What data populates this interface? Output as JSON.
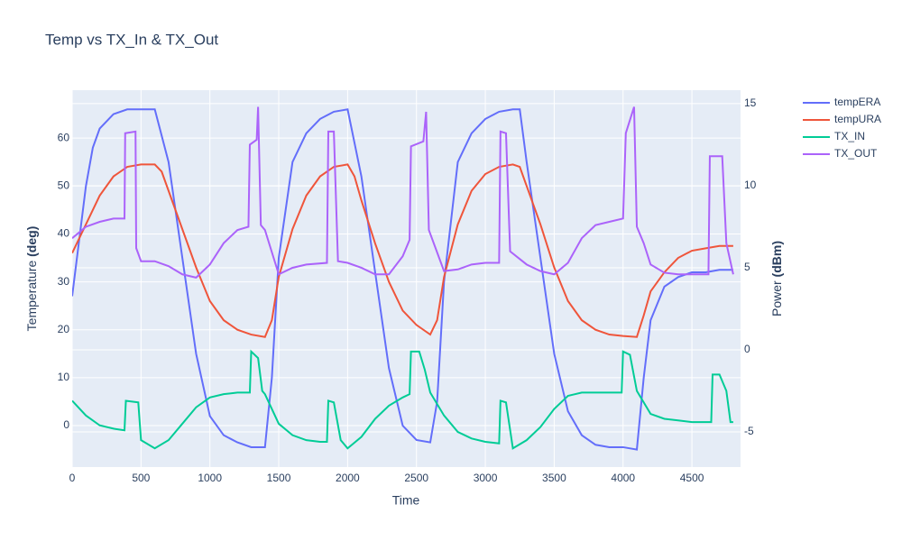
{
  "chart_data": {
    "type": "line",
    "title": "Temp vs TX_In & TX_Out",
    "x_label": "Time",
    "y_label": "Temperature",
    "y_label_unit": "(deg)",
    "y2_label": "Power",
    "y2_label_unit": "(dBm)",
    "xlim": [
      0,
      4853
    ],
    "xticks": [
      0,
      500,
      1000,
      1500,
      2000,
      2500,
      3000,
      3500,
      4000,
      4500
    ],
    "ylim": [
      -8.65,
      70
    ],
    "yticks": [
      0,
      10,
      20,
      30,
      40,
      50,
      60
    ],
    "y2lim": [
      -7.14,
      15.82
    ],
    "y2ticks": [
      -5,
      0,
      5,
      10,
      15
    ],
    "grid": true,
    "legend": "right",
    "series": [
      {
        "name": "tempERA",
        "color": "#636efa",
        "x": [
          0,
          100,
          150,
          200,
          300,
          400,
          600,
          700,
          800,
          900,
          1000,
          1100,
          1200,
          1300,
          1400,
          1450,
          1500,
          1600,
          1700,
          1800,
          1900,
          2000,
          2100,
          2200,
          2300,
          2400,
          2500,
          2600,
          2650,
          2700,
          2800,
          2900,
          3000,
          3100,
          3200,
          3250,
          3300,
          3400,
          3500,
          3600,
          3700,
          3800,
          3900,
          4000,
          4100,
          4150,
          4200,
          4300,
          4400,
          4500,
          4600,
          4700,
          4800
        ],
        "values": [
          27,
          50,
          58,
          62,
          65,
          66,
          66,
          55,
          35,
          15,
          2,
          -2,
          -3.5,
          -4.5,
          -4.5,
          10,
          35,
          55,
          61,
          64,
          65.5,
          66,
          52,
          32,
          12,
          0,
          -3,
          -3.5,
          5,
          30,
          55,
          61,
          64,
          65.5,
          66,
          66,
          55,
          35,
          15,
          3,
          -2,
          -4,
          -4.5,
          -4.5,
          -5,
          10,
          22,
          29,
          31,
          32,
          32,
          32.5,
          32.5
        ]
      },
      {
        "name": "tempURA",
        "color": "#ef553b",
        "x": [
          0,
          100,
          200,
          300,
          400,
          500,
          600,
          650,
          700,
          800,
          900,
          1000,
          1100,
          1200,
          1300,
          1400,
          1450,
          1500,
          1600,
          1700,
          1800,
          1900,
          2000,
          2050,
          2100,
          2200,
          2300,
          2400,
          2500,
          2600,
          2650,
          2700,
          2800,
          2900,
          3000,
          3100,
          3200,
          3250,
          3300,
          3400,
          3500,
          3600,
          3700,
          3800,
          3900,
          4000,
          4100,
          4150,
          4200,
          4300,
          4400,
          4500,
          4600,
          4700,
          4800
        ],
        "values": [
          36,
          42,
          48,
          52,
          54,
          54.5,
          54.5,
          53,
          49,
          41,
          33,
          26,
          22,
          20,
          19,
          18.5,
          22,
          31,
          41,
          48,
          52,
          54,
          54.5,
          52,
          47,
          38,
          30,
          24,
          21,
          19,
          22,
          31,
          42,
          49,
          52.5,
          54,
          54.5,
          54,
          50,
          42,
          33,
          26,
          22,
          20,
          19,
          18.7,
          18.5,
          23,
          28,
          32,
          35,
          36.5,
          37,
          37.5,
          37.5
        ]
      },
      {
        "name": "TX_IN",
        "color": "#00cc96",
        "axis": "y2",
        "x": [
          0,
          100,
          200,
          300,
          380,
          390,
          480,
          500,
          600,
          700,
          800,
          900,
          1000,
          1100,
          1200,
          1290,
          1300,
          1350,
          1380,
          1400,
          1500,
          1600,
          1700,
          1800,
          1850,
          1860,
          1900,
          1950,
          2000,
          2100,
          2200,
          2300,
          2400,
          2450,
          2460,
          2520,
          2560,
          2600,
          2700,
          2800,
          2900,
          3000,
          3100,
          3110,
          3150,
          3200,
          3300,
          3400,
          3500,
          3600,
          3700,
          3800,
          3900,
          3990,
          4000,
          4050,
          4100,
          4200,
          4300,
          4400,
          4500,
          4600,
          4640,
          4650,
          4700,
          4750,
          4780,
          4800
        ],
        "values": [
          -3.1,
          -4,
          -4.6,
          -4.8,
          -4.9,
          -3.1,
          -3.2,
          -5.5,
          -6,
          -5.5,
          -4.5,
          -3.5,
          -2.9,
          -2.7,
          -2.6,
          -2.6,
          -0.1,
          -0.5,
          -2.5,
          -2.7,
          -4.5,
          -5.2,
          -5.5,
          -5.6,
          -5.6,
          -3.1,
          -3.2,
          -5.5,
          -6,
          -5.3,
          -4.2,
          -3.4,
          -2.9,
          -2.7,
          -0.1,
          -0.1,
          -1.2,
          -2.6,
          -4,
          -5,
          -5.4,
          -5.6,
          -5.7,
          -3.1,
          -3.2,
          -6,
          -5.5,
          -4.7,
          -3.6,
          -2.8,
          -2.6,
          -2.6,
          -2.6,
          -2.6,
          -0.1,
          -0.3,
          -2.5,
          -3.9,
          -4.2,
          -4.3,
          -4.4,
          -4.4,
          -4.4,
          -1.5,
          -1.5,
          -2.5,
          -4.4,
          -4.4
        ]
      },
      {
        "name": "TX_OUT",
        "color": "#ab63fa",
        "axis": "y2",
        "x": [
          0,
          100,
          200,
          300,
          380,
          385,
          460,
          465,
          500,
          600,
          700,
          800,
          900,
          1000,
          1100,
          1200,
          1280,
          1290,
          1340,
          1350,
          1370,
          1400,
          1500,
          1600,
          1700,
          1850,
          1860,
          1900,
          1930,
          2000,
          2100,
          2200,
          2300,
          2400,
          2450,
          2460,
          2550,
          2570,
          2590,
          2700,
          2800,
          2900,
          3000,
          3100,
          3110,
          3150,
          3180,
          3300,
          3400,
          3500,
          3600,
          3700,
          3800,
          3900,
          4000,
          4020,
          4080,
          4100,
          4150,
          4200,
          4300,
          4400,
          4500,
          4600,
          4620,
          4630,
          4720,
          4750,
          4800
        ],
        "values": [
          6.8,
          7.5,
          7.8,
          8,
          8,
          13.2,
          13.3,
          6.2,
          5.4,
          5.4,
          5.1,
          4.6,
          4.4,
          5.2,
          6.5,
          7.3,
          7.5,
          12.5,
          12.8,
          14.8,
          7.6,
          7.3,
          4.6,
          5,
          5.2,
          5.3,
          13.3,
          13.3,
          5.4,
          5.3,
          5,
          4.6,
          4.6,
          5.7,
          6.7,
          12.4,
          12.7,
          14.5,
          7.3,
          4.8,
          4.9,
          5.2,
          5.3,
          5.3,
          13.3,
          13.2,
          6,
          5.2,
          4.8,
          4.6,
          5.3,
          6.8,
          7.6,
          7.8,
          8,
          13.2,
          14.8,
          7.5,
          6.5,
          5.2,
          4.7,
          4.6,
          4.6,
          4.6,
          4.6,
          11.8,
          11.8,
          6.5,
          4.6
        ]
      }
    ]
  }
}
